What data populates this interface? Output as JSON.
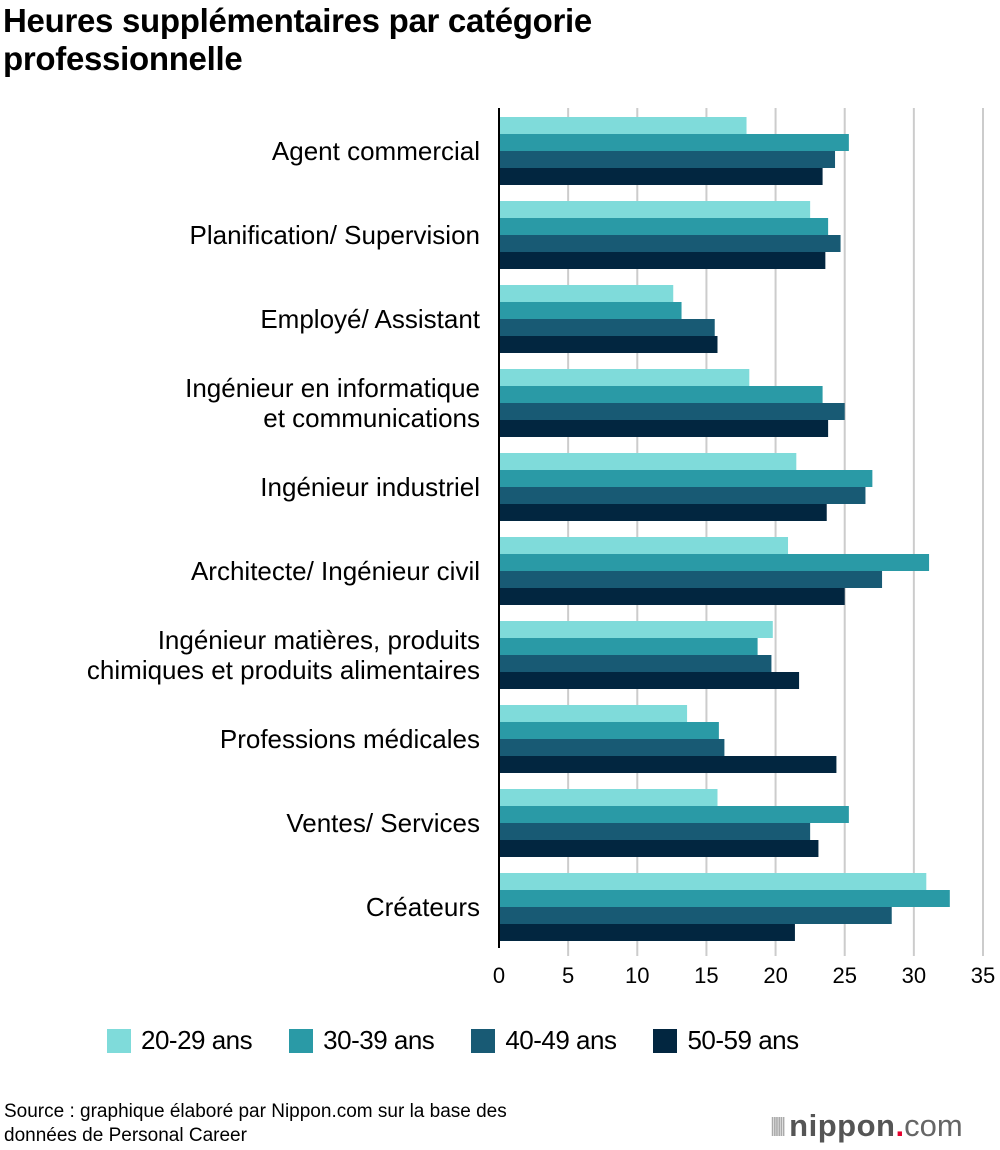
{
  "chart_data": {
    "type": "bar",
    "orientation": "horizontal",
    "title": "Heures supplémentaires par catégorie professionnelle",
    "title_lines": [
      "Heures supplémentaires par catégorie",
      "professionnelle"
    ],
    "xlabel": "",
    "ylabel": "",
    "xlim": [
      0,
      35
    ],
    "xticks": [
      0,
      5,
      10,
      15,
      20,
      25,
      30,
      35
    ],
    "grid": true,
    "legend_position": "bottom",
    "categories": [
      [
        "Agent commercial"
      ],
      [
        "Planification/ Supervision"
      ],
      [
        "Employé/ Assistant"
      ],
      [
        "Ingénieur en informatique",
        "et communications"
      ],
      [
        "Ingénieur industriel"
      ],
      [
        "Architecte/ Ingénieur civil"
      ],
      [
        "Ingénieur matières, produits",
        "chimiques et produits alimentaires"
      ],
      [
        "Professions médicales"
      ],
      [
        "Ventes/ Services"
      ],
      [
        "Créateurs"
      ]
    ],
    "series": [
      {
        "name": "20-29 ans",
        "color": "#7fdbda",
        "values": [
          17.9,
          22.5,
          12.6,
          18.1,
          21.5,
          20.9,
          19.8,
          13.6,
          15.8,
          30.9
        ]
      },
      {
        "name": "30-39 ans",
        "color": "#2a9aa6",
        "values": [
          25.3,
          23.8,
          13.2,
          23.4,
          27.0,
          31.1,
          18.7,
          15.9,
          25.3,
          32.6
        ]
      },
      {
        "name": "40-49 ans",
        "color": "#185a74",
        "values": [
          24.3,
          24.7,
          15.6,
          25.0,
          26.5,
          27.7,
          19.7,
          16.3,
          22.5,
          28.4
        ]
      },
      {
        "name": "50-59 ans",
        "color": "#022640",
        "values": [
          23.4,
          23.6,
          15.8,
          23.8,
          23.7,
          25.0,
          21.7,
          24.4,
          23.1,
          21.4
        ]
      }
    ]
  },
  "footer": {
    "source_lines": [
      "Source : graphique élaboré par Nippon.com sur la base des",
      "données de Personal Career"
    ],
    "logo_name": "nippon",
    "logo_dot": ".",
    "logo_com": "com"
  }
}
